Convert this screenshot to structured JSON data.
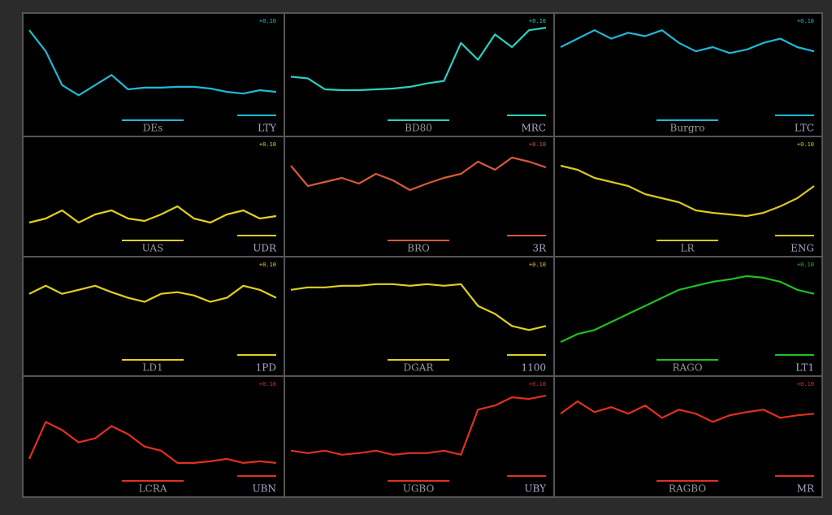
{
  "chart_data": [
    {
      "type": "line",
      "caption": "DEs",
      "note": "LTY",
      "badge": "+0.10",
      "ylim": [
        0,
        100
      ],
      "series": [
        {
          "color": "#1fb8d8",
          "values": [
            95,
            70,
            30,
            18,
            30,
            42,
            25,
            27,
            27,
            28,
            28,
            26,
            22,
            20,
            24,
            22
          ]
        }
      ]
    },
    {
      "type": "line",
      "caption": "BD80",
      "note": "MRC",
      "badge": "+0.10",
      "ylim": [
        0,
        100
      ],
      "series": [
        {
          "color": "#2ad0c0",
          "values": [
            40,
            38,
            25,
            24,
            24,
            25,
            26,
            28,
            32,
            35,
            80,
            60,
            90,
            75,
            95,
            98
          ]
        }
      ]
    },
    {
      "type": "line",
      "caption": "Burgro",
      "note": "LTC",
      "badge": "+0.10",
      "ylim": [
        0,
        100
      ],
      "series": [
        {
          "color": "#1fb8d8",
          "values": [
            75,
            85,
            95,
            85,
            92,
            88,
            95,
            80,
            70,
            75,
            68,
            72,
            80,
            85,
            75,
            70
          ]
        }
      ]
    },
    {
      "type": "line",
      "caption": "UAS",
      "note": "UDR",
      "badge": "+0.10",
      "ylim": [
        0,
        100
      ],
      "series": [
        {
          "color": "#e0d020",
          "values": [
            10,
            15,
            25,
            10,
            20,
            25,
            15,
            12,
            20,
            30,
            15,
            10,
            20,
            25,
            15,
            18
          ]
        }
      ]
    },
    {
      "type": "line",
      "caption": "BRO",
      "note": "3R",
      "badge": "+0.10",
      "ylim": [
        0,
        100
      ],
      "series": [
        {
          "color": "#d85a3a",
          "values": [
            80,
            55,
            60,
            65,
            58,
            70,
            62,
            50,
            58,
            65,
            70,
            85,
            75,
            90,
            85,
            78
          ]
        }
      ]
    },
    {
      "type": "line",
      "caption": "LR",
      "note": "ENG",
      "badge": "+0.10",
      "ylim": [
        0,
        100
      ],
      "series": [
        {
          "color": "#d8c820",
          "values": [
            80,
            75,
            65,
            60,
            55,
            45,
            40,
            35,
            25,
            22,
            20,
            18,
            22,
            30,
            40,
            55
          ]
        }
      ]
    },
    {
      "type": "line",
      "caption": "LD1",
      "note": "1PD",
      "badge": "+0.10",
      "ylim": [
        0,
        100
      ],
      "series": [
        {
          "color": "#e0d020",
          "values": [
            70,
            80,
            70,
            75,
            80,
            72,
            65,
            60,
            70,
            72,
            68,
            60,
            65,
            80,
            75,
            65
          ]
        }
      ]
    },
    {
      "type": "line",
      "caption": "DGAR",
      "note": "1100",
      "badge": "+0.10",
      "ylim": [
        0,
        100
      ],
      "series": [
        {
          "color": "#e0d020",
          "values": [
            75,
            78,
            78,
            80,
            80,
            82,
            82,
            80,
            82,
            80,
            82,
            55,
            45,
            30,
            25,
            30
          ]
        }
      ]
    },
    {
      "type": "line",
      "caption": "RAGO",
      "note": "LT1",
      "badge": "+0.10",
      "ylim": [
        0,
        100
      ],
      "series": [
        {
          "color": "#20c020",
          "values": [
            10,
            20,
            25,
            35,
            45,
            55,
            65,
            75,
            80,
            85,
            88,
            92,
            90,
            85,
            75,
            70
          ]
        }
      ]
    },
    {
      "type": "line",
      "caption": "LCRA",
      "note": "UBN",
      "badge": "+0.10",
      "ylim": [
        0,
        100
      ],
      "series": [
        {
          "color": "#e03020",
          "values": [
            15,
            60,
            50,
            35,
            40,
            55,
            45,
            30,
            25,
            10,
            10,
            12,
            15,
            10,
            12,
            10
          ]
        }
      ]
    },
    {
      "type": "line",
      "caption": "UGBO",
      "note": "UBY",
      "badge": "+0.10",
      "ylim": [
        0,
        100
      ],
      "series": [
        {
          "color": "#e03020",
          "values": [
            25,
            22,
            25,
            20,
            22,
            25,
            20,
            22,
            22,
            25,
            20,
            75,
            80,
            90,
            88,
            92
          ]
        }
      ]
    },
    {
      "type": "line",
      "caption": "RAGBO",
      "note": "MR",
      "badge": "+0.10",
      "ylim": [
        0,
        100
      ],
      "series": [
        {
          "color": "#e03020",
          "values": [
            70,
            85,
            72,
            78,
            70,
            80,
            65,
            75,
            70,
            60,
            68,
            72,
            75,
            65,
            68,
            70
          ]
        }
      ]
    }
  ]
}
